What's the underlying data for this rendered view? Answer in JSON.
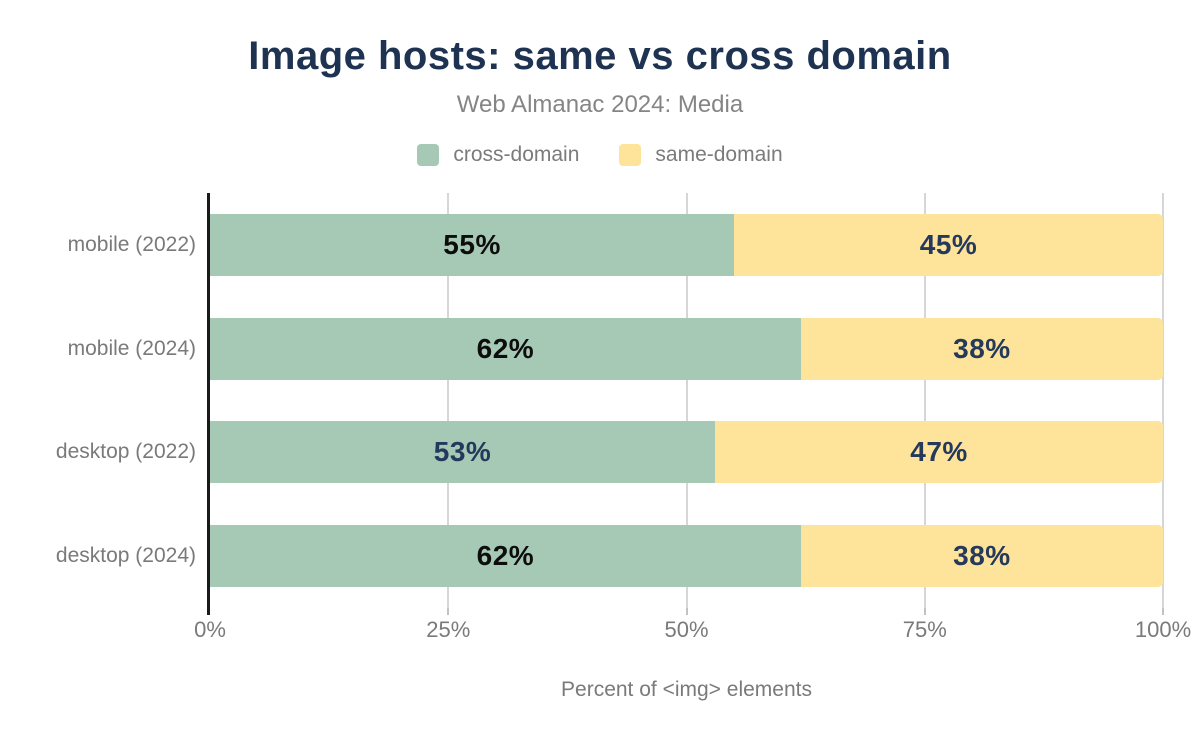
{
  "chart_data": {
    "type": "bar",
    "orientation": "horizontal",
    "stacked": true,
    "title": "Image hosts: same vs cross domain",
    "subtitle": "Web Almanac 2024: Media",
    "xlabel": "Percent of <img> elements",
    "categories": [
      "mobile (2022)",
      "mobile (2024)",
      "desktop (2022)",
      "desktop (2024)"
    ],
    "series": [
      {
        "name": "cross-domain",
        "color": "#a6c9b6",
        "values": [
          55,
          62,
          53,
          62
        ],
        "value_labels": [
          "55%",
          "62%",
          "53%",
          "62%"
        ],
        "label_colors": [
          "#0d0d0d",
          "#0d0d0d",
          "#24395b",
          "#0d0d0d"
        ]
      },
      {
        "name": "same-domain",
        "color": "#fde49a",
        "values": [
          45,
          38,
          47,
          38
        ],
        "value_labels": [
          "45%",
          "38%",
          "47%",
          "38%"
        ],
        "label_colors": [
          "#24395b",
          "#24395b",
          "#24395b",
          "#24395b"
        ]
      }
    ],
    "xlim": [
      0,
      100
    ],
    "x_tick_values": [
      0,
      25,
      50,
      75,
      100
    ],
    "x_tick_labels": [
      "0%",
      "25%",
      "50%",
      "75%",
      "100%"
    ],
    "grid": "vertical",
    "legend_position": "top",
    "colors": {
      "title": "#1e3352",
      "muted_text": "#7a7a7a",
      "gridline": "#d6d6d6",
      "axis": "#1a1a1a"
    }
  }
}
